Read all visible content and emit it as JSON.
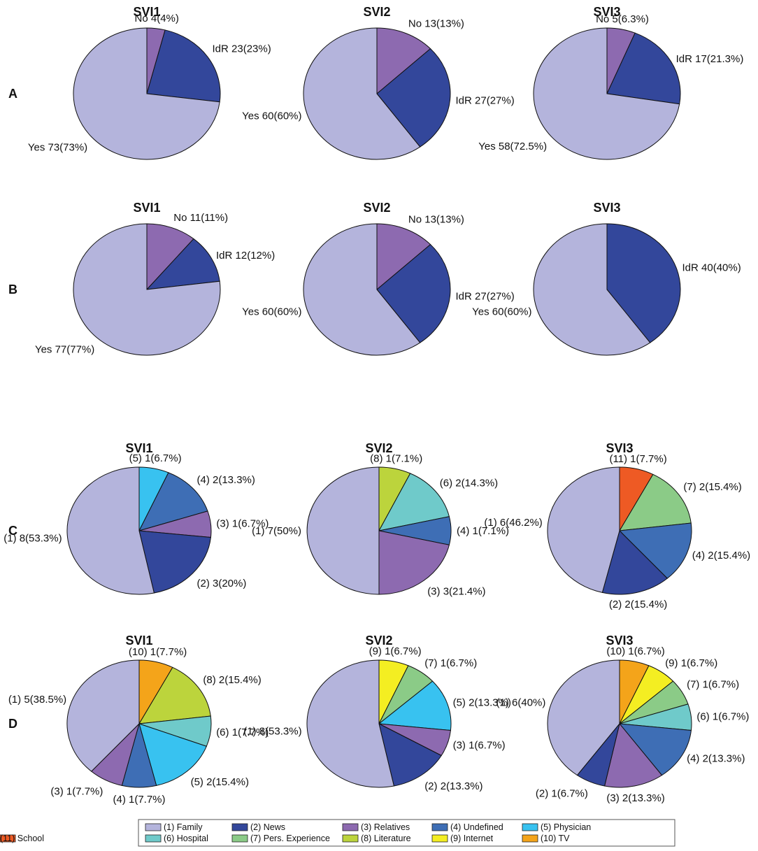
{
  "colors": {
    "yes": "#b4b4dc",
    "idr": "#33479b",
    "no": "#8d6ab0",
    "c1": "#b4b4dc",
    "c2": "#33479b",
    "c3": "#8d6ab0",
    "c4": "#3e6eb5",
    "c5": "#38c2f0",
    "c6": "#6fcaca",
    "c7": "#8bcb87",
    "c8": "#bcd43c",
    "c9": "#f4ee22",
    "c10": "#f4a41a",
    "c11": "#ee5a24"
  },
  "chart_data": [
    {
      "type": "pie",
      "row": "A",
      "title": "SVI1",
      "slices": [
        {
          "key": "no",
          "label": "No  4(4%)",
          "value": 4
        },
        {
          "key": "idr",
          "label": "IdR  23(23%)",
          "value": 23
        },
        {
          "key": "yes",
          "label": "Yes  73(73%)",
          "value": 73
        }
      ]
    },
    {
      "type": "pie",
      "row": "A",
      "title": "SVI2",
      "slices": [
        {
          "key": "no",
          "label": "No  13(13%)",
          "value": 13
        },
        {
          "key": "idr",
          "label": "IdR  27(27%)",
          "value": 27
        },
        {
          "key": "yes",
          "label": "Yes  60(60%)",
          "value": 60
        }
      ]
    },
    {
      "type": "pie",
      "row": "A",
      "title": "SVI3",
      "slices": [
        {
          "key": "no",
          "label": "No  5(6.3%)",
          "value": 5
        },
        {
          "key": "idr",
          "label": "IdR  17(21.3%)",
          "value": 17
        },
        {
          "key": "yes",
          "label": "Yes  58(72.5%)",
          "value": 58
        }
      ]
    },
    {
      "type": "pie",
      "row": "B",
      "title": "SVI1",
      "slices": [
        {
          "key": "no",
          "label": "No  11(11%)",
          "value": 11
        },
        {
          "key": "idr",
          "label": "IdR  12(12%)",
          "value": 12
        },
        {
          "key": "yes",
          "label": "Yes  77(77%)",
          "value": 77
        }
      ]
    },
    {
      "type": "pie",
      "row": "B",
      "title": "SVI2",
      "slices": [
        {
          "key": "no",
          "label": "No  13(13%)",
          "value": 13
        },
        {
          "key": "idr",
          "label": "IdR  27(27%)",
          "value": 27
        },
        {
          "key": "yes",
          "label": "Yes  60(60%)",
          "value": 60
        }
      ]
    },
    {
      "type": "pie",
      "row": "B",
      "title": "SVI3",
      "slices": [
        {
          "key": "idr",
          "label": "IdR  40(40%)",
          "value": 40
        },
        {
          "key": "yes",
          "label": "Yes  60(60%)",
          "value": 60
        }
      ]
    },
    {
      "type": "pie",
      "row": "C",
      "title": "SVI1",
      "slices": [
        {
          "key": "c5",
          "label": "(5)  1(6.7%)",
          "value": 1
        },
        {
          "key": "c4",
          "label": "(4)  2(13.3%)",
          "value": 2
        },
        {
          "key": "c3",
          "label": "(3)  1(6.7%)",
          "value": 1
        },
        {
          "key": "c2",
          "label": "(2)  3(20%)",
          "value": 3
        },
        {
          "key": "c1",
          "label": "(1)  8(53.3%)",
          "value": 8
        }
      ]
    },
    {
      "type": "pie",
      "row": "C",
      "title": "SVI2",
      "slices": [
        {
          "key": "c8",
          "label": "(8)  1(7.1%)",
          "value": 1
        },
        {
          "key": "c6",
          "label": "(6)  2(14.3%)",
          "value": 2
        },
        {
          "key": "c4",
          "label": "(4)  1(7.1%)",
          "value": 1
        },
        {
          "key": "c3",
          "label": "(3)  3(21.4%)",
          "value": 3
        },
        {
          "key": "c1",
          "label": "(1)  7(50%)",
          "value": 7
        }
      ]
    },
    {
      "type": "pie",
      "row": "C",
      "title": "SVI3",
      "slices": [
        {
          "key": "c11",
          "label": "(11)  1(7.7%)",
          "value": 1
        },
        {
          "key": "c7",
          "label": "(7)  2(15.4%)",
          "value": 2
        },
        {
          "key": "c4",
          "label": "(4)  2(15.4%)",
          "value": 2
        },
        {
          "key": "c2",
          "label": "(2)  2(15.4%)",
          "value": 2
        },
        {
          "key": "c1",
          "label": "(1)  6(46.2%)",
          "value": 6
        }
      ]
    },
    {
      "type": "pie",
      "row": "D",
      "title": "SVI1",
      "slices": [
        {
          "key": "c10",
          "label": "(10)  1(7.7%)",
          "value": 1
        },
        {
          "key": "c8",
          "label": "(8)  2(15.4%)",
          "value": 2
        },
        {
          "key": "c6",
          "label": "(6)  1(7.7%)",
          "value": 1
        },
        {
          "key": "c5",
          "label": "(5)  2(15.4%)",
          "value": 2
        },
        {
          "key": "c4",
          "label": "(4)  1(7.7%)",
          "value": 1
        },
        {
          "key": "c3",
          "label": "(3)  1(7.7%)",
          "value": 1
        },
        {
          "key": "c1",
          "label": "(1)  5(38.5%)",
          "value": 5
        }
      ]
    },
    {
      "type": "pie",
      "row": "D",
      "title": "SVI2",
      "slices": [
        {
          "key": "c9",
          "label": "(9)  1(6.7%)",
          "value": 1
        },
        {
          "key": "c7",
          "label": "(7)  1(6.7%)",
          "value": 1
        },
        {
          "key": "c5",
          "label": "(5)  2(13.3%)",
          "value": 2
        },
        {
          "key": "c3",
          "label": "(3)  1(6.7%)",
          "value": 1
        },
        {
          "key": "c2",
          "label": "(2)  2(13.3%)",
          "value": 2
        },
        {
          "key": "c1",
          "label": "(1)  8(53.3%)",
          "value": 8
        }
      ]
    },
    {
      "type": "pie",
      "row": "D",
      "title": "SVI3",
      "slices": [
        {
          "key": "c10",
          "label": "(10)  1(6.7%)",
          "value": 1
        },
        {
          "key": "c9",
          "label": "(9)  1(6.7%)",
          "value": 1
        },
        {
          "key": "c7",
          "label": "(7)  1(6.7%)",
          "value": 1
        },
        {
          "key": "c6",
          "label": "(6)  1(6.7%)",
          "value": 1
        },
        {
          "key": "c4",
          "label": "(4)  2(13.3%)",
          "value": 2
        },
        {
          "key": "c3",
          "label": "(3)  2(13.3%)",
          "value": 2
        },
        {
          "key": "c2",
          "label": "(2)  1(6.7%)",
          "value": 1
        },
        {
          "key": "c1",
          "label": "(1)  6(40%)",
          "value": 6
        }
      ]
    }
  ],
  "row_labels": [
    "A",
    "B",
    "C",
    "D"
  ],
  "legend": [
    {
      "key": "c1",
      "label": "(1) Family"
    },
    {
      "key": "c2",
      "label": "(2) News"
    },
    {
      "key": "c3",
      "label": "(3) Relatives"
    },
    {
      "key": "c4",
      "label": "(4) Undefined"
    },
    {
      "key": "c5",
      "label": "(5) Physician"
    },
    {
      "key": "c6",
      "label": "(6) Hospital"
    },
    {
      "key": "c7",
      "label": "(7) Pers. Experience"
    },
    {
      "key": "c8",
      "label": "(8) Literature"
    },
    {
      "key": "c9",
      "label": "(9) Internet"
    },
    {
      "key": "c10",
      "label": "(10) TV"
    },
    {
      "key": "c11",
      "label": "(11) School"
    }
  ]
}
